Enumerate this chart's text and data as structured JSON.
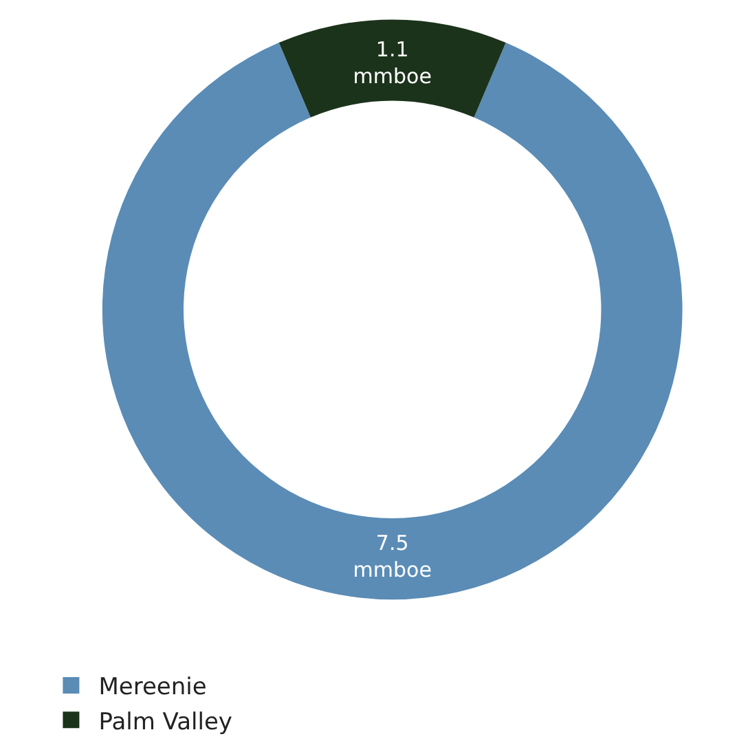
{
  "chart_data": {
    "type": "donut",
    "categories": [
      "Mereenie",
      "Palm Valley"
    ],
    "values": [
      7.5,
      1.1
    ],
    "colors": [
      "#5a8cb6",
      "#1c331b"
    ],
    "value_labels": [
      "7.5 mmboe",
      "1.1 mmboe"
    ],
    "legend": "bottom left"
  }
}
